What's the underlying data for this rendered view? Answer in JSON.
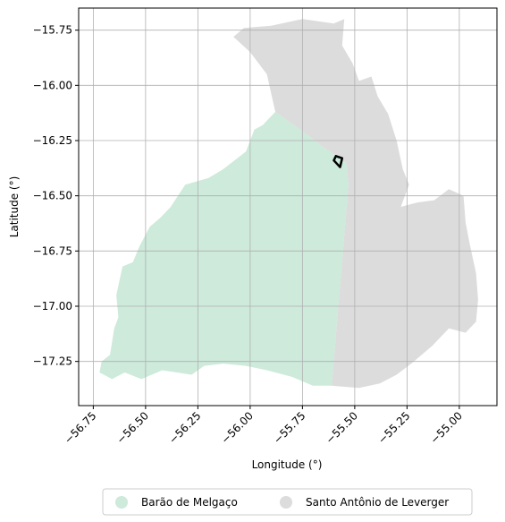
{
  "chart_data": {
    "type": "map",
    "xlabel": "Longitude (°)",
    "ylabel": "Latitude (°)",
    "xlim": [
      -56.82,
      -54.82
    ],
    "ylim": [
      -17.45,
      -15.65
    ],
    "xticks": [
      -56.75,
      -56.5,
      -56.25,
      -56.0,
      -55.75,
      -55.5,
      -55.25,
      -55.0
    ],
    "xtick_labels": [
      "−56.75",
      "−56.50",
      "−56.25",
      "−56.00",
      "−55.75",
      "−55.50",
      "−55.25",
      "−55.00"
    ],
    "yticks": [
      -15.75,
      -16.0,
      -16.25,
      -16.5,
      -16.75,
      -17.0,
      -17.25
    ],
    "ytick_labels": [
      "−15.75",
      "−16.00",
      "−16.25",
      "−16.50",
      "−16.75",
      "−17.00",
      "−17.25"
    ],
    "grid": true,
    "legend_position": "bottom-center",
    "series": [
      {
        "name": "Barão de Melgaço",
        "color": "#cdeadb",
        "polygon": [
          [
            -56.66,
            -17.33
          ],
          [
            -56.72,
            -17.3
          ],
          [
            -56.71,
            -17.25
          ],
          [
            -56.67,
            -17.22
          ],
          [
            -56.65,
            -17.1
          ],
          [
            -56.63,
            -17.05
          ],
          [
            -56.64,
            -16.95
          ],
          [
            -56.61,
            -16.82
          ],
          [
            -56.56,
            -16.8
          ],
          [
            -56.53,
            -16.73
          ],
          [
            -56.48,
            -16.64
          ],
          [
            -56.43,
            -16.6
          ],
          [
            -56.38,
            -16.55
          ],
          [
            -56.31,
            -16.45
          ],
          [
            -56.2,
            -16.42
          ],
          [
            -56.13,
            -16.38
          ],
          [
            -56.02,
            -16.3
          ],
          [
            -55.98,
            -16.2
          ],
          [
            -55.94,
            -16.18
          ],
          [
            -55.88,
            -16.12
          ],
          [
            -55.76,
            -16.2
          ],
          [
            -55.65,
            -16.28
          ],
          [
            -55.54,
            -16.35
          ],
          [
            -55.53,
            -16.45
          ],
          [
            -55.61,
            -17.36
          ],
          [
            -55.7,
            -17.36
          ],
          [
            -55.8,
            -17.32
          ],
          [
            -55.92,
            -17.29
          ],
          [
            -56.02,
            -17.27
          ],
          [
            -56.13,
            -17.26
          ],
          [
            -56.22,
            -17.27
          ],
          [
            -56.28,
            -17.31
          ],
          [
            -56.42,
            -17.29
          ],
          [
            -56.52,
            -17.33
          ],
          [
            -56.6,
            -17.3
          ]
        ]
      },
      {
        "name": "Santo Antônio de Leverger",
        "color": "#dcdcdc",
        "polygon": [
          [
            -55.88,
            -16.12
          ],
          [
            -55.92,
            -15.95
          ],
          [
            -56.0,
            -15.85
          ],
          [
            -56.08,
            -15.78
          ],
          [
            -56.03,
            -15.74
          ],
          [
            -55.9,
            -15.73
          ],
          [
            -55.75,
            -15.7
          ],
          [
            -55.6,
            -15.72
          ],
          [
            -55.55,
            -15.7
          ],
          [
            -55.56,
            -15.82
          ],
          [
            -55.51,
            -15.9
          ],
          [
            -55.48,
            -15.98
          ],
          [
            -55.42,
            -15.96
          ],
          [
            -55.39,
            -16.05
          ],
          [
            -55.34,
            -16.13
          ],
          [
            -55.3,
            -16.25
          ],
          [
            -55.27,
            -16.38
          ],
          [
            -55.24,
            -16.45
          ],
          [
            -55.28,
            -16.55
          ],
          [
            -55.2,
            -16.53
          ],
          [
            -55.12,
            -16.52
          ],
          [
            -55.05,
            -16.47
          ],
          [
            -54.98,
            -16.5
          ],
          [
            -54.97,
            -16.62
          ],
          [
            -54.95,
            -16.72
          ],
          [
            -54.92,
            -16.85
          ],
          [
            -54.91,
            -16.97
          ],
          [
            -54.92,
            -17.07
          ],
          [
            -54.97,
            -17.12
          ],
          [
            -55.05,
            -17.1
          ],
          [
            -55.13,
            -17.18
          ],
          [
            -55.23,
            -17.26
          ],
          [
            -55.3,
            -17.31
          ],
          [
            -55.38,
            -17.35
          ],
          [
            -55.48,
            -17.37
          ],
          [
            -55.61,
            -17.36
          ],
          [
            -55.53,
            -16.45
          ],
          [
            -55.54,
            -16.35
          ],
          [
            -55.65,
            -16.28
          ],
          [
            -55.76,
            -16.2
          ]
        ]
      }
    ],
    "outline": {
      "color": "#000000",
      "polygon": [
        [
          -55.59,
          -16.32
        ],
        [
          -55.56,
          -16.33
        ],
        [
          -55.57,
          -16.37
        ],
        [
          -55.6,
          -16.34
        ]
      ]
    }
  }
}
